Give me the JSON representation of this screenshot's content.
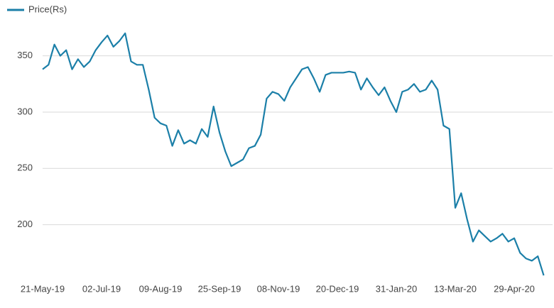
{
  "chart_data": {
    "type": "line",
    "categories": [
      "21-May-19",
      null,
      null,
      null,
      null,
      null,
      null,
      null,
      null,
      null,
      "02-Jul-19",
      null,
      null,
      null,
      null,
      null,
      null,
      null,
      null,
      null,
      "09-Aug-19",
      null,
      null,
      null,
      null,
      null,
      null,
      null,
      null,
      null,
      "25-Sep-19",
      null,
      null,
      null,
      null,
      null,
      null,
      null,
      null,
      null,
      "08-Nov-19",
      null,
      null,
      null,
      null,
      null,
      null,
      null,
      null,
      null,
      "20-Dec-19",
      null,
      null,
      null,
      null,
      null,
      null,
      null,
      null,
      null,
      "31-Jan-20",
      null,
      null,
      null,
      null,
      null,
      null,
      null,
      null,
      null,
      "13-Mar-20",
      null,
      null,
      null,
      null,
      null,
      null,
      null,
      null,
      null,
      "29-Apr-20",
      null,
      null,
      null,
      null,
      null
    ],
    "series": [
      {
        "name": "Price(Rs)",
        "color": "#1b7fa8",
        "values": [
          338,
          342,
          360,
          350,
          355,
          338,
          347,
          340,
          345,
          355,
          362,
          368,
          358,
          363,
          370,
          345,
          342,
          342,
          320,
          295,
          290,
          288,
          270,
          284,
          272,
          275,
          272,
          285,
          278,
          305,
          282,
          265,
          252,
          255,
          258,
          268,
          270,
          280,
          312,
          318,
          316,
          310,
          322,
          330,
          338,
          340,
          330,
          318,
          333,
          335,
          335,
          335,
          336,
          335,
          320,
          330,
          322,
          315,
          322,
          310,
          300,
          318,
          320,
          325,
          318,
          320,
          328,
          320,
          288,
          285,
          215,
          228,
          205,
          185,
          195,
          190,
          185,
          188,
          192,
          185,
          188,
          175,
          170,
          168,
          172,
          155
        ]
      }
    ],
    "ylim": [
      150,
      380
    ],
    "yticks": [
      200,
      250,
      300,
      350
    ],
    "grid": true,
    "legend": "top-left"
  }
}
